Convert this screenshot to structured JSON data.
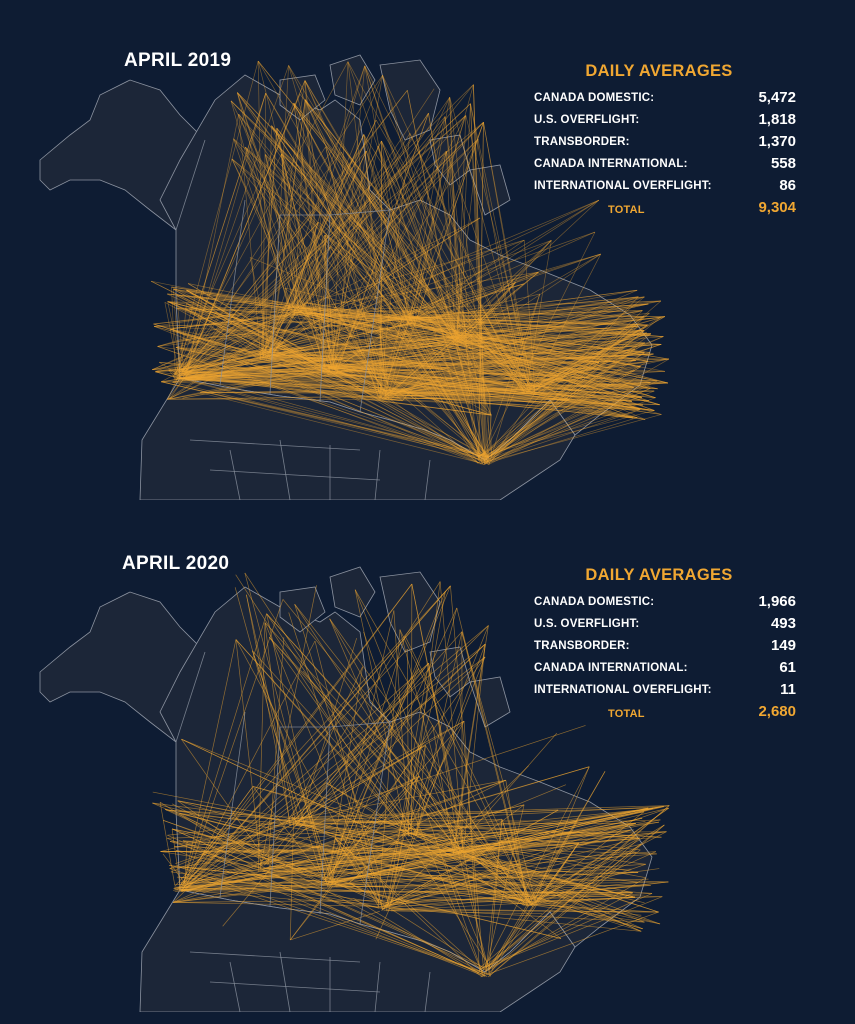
{
  "panels": [
    {
      "title": "APRIL 2019",
      "stats_heading": "DAILY AVERAGES",
      "stats": [
        {
          "label": "CANADA DOMESTIC:",
          "value": "5,472"
        },
        {
          "label": "U.S. OVERFLIGHT:",
          "value": "1,818"
        },
        {
          "label": "TRANSBORDER:",
          "value": "1,370"
        },
        {
          "label": "CANADA INTERNATIONAL:",
          "value": "558"
        },
        {
          "label": "INTERNATIONAL OVERFLIGHT:",
          "value": "86"
        }
      ],
      "total_label": "TOTAL",
      "total_value": "9,304"
    },
    {
      "title": "APRIL 2020",
      "stats_heading": "DAILY AVERAGES",
      "stats": [
        {
          "label": "CANADA DOMESTIC:",
          "value": "1,966"
        },
        {
          "label": "U.S. OVERFLIGHT:",
          "value": "493"
        },
        {
          "label": "TRANSBORDER:",
          "value": "149"
        },
        {
          "label": "CANADA INTERNATIONAL:",
          "value": "61"
        },
        {
          "label": "INTERNATIONAL OVERFLIGHT:",
          "value": "11"
        }
      ],
      "total_label": "TOTAL",
      "total_value": "2,680"
    }
  ],
  "colors": {
    "background": "#0e1c33",
    "land": "#1c2638",
    "border": "#8c93a0",
    "flight": "#f0a732",
    "heading": "#f0a732",
    "text": "#ffffff"
  }
}
